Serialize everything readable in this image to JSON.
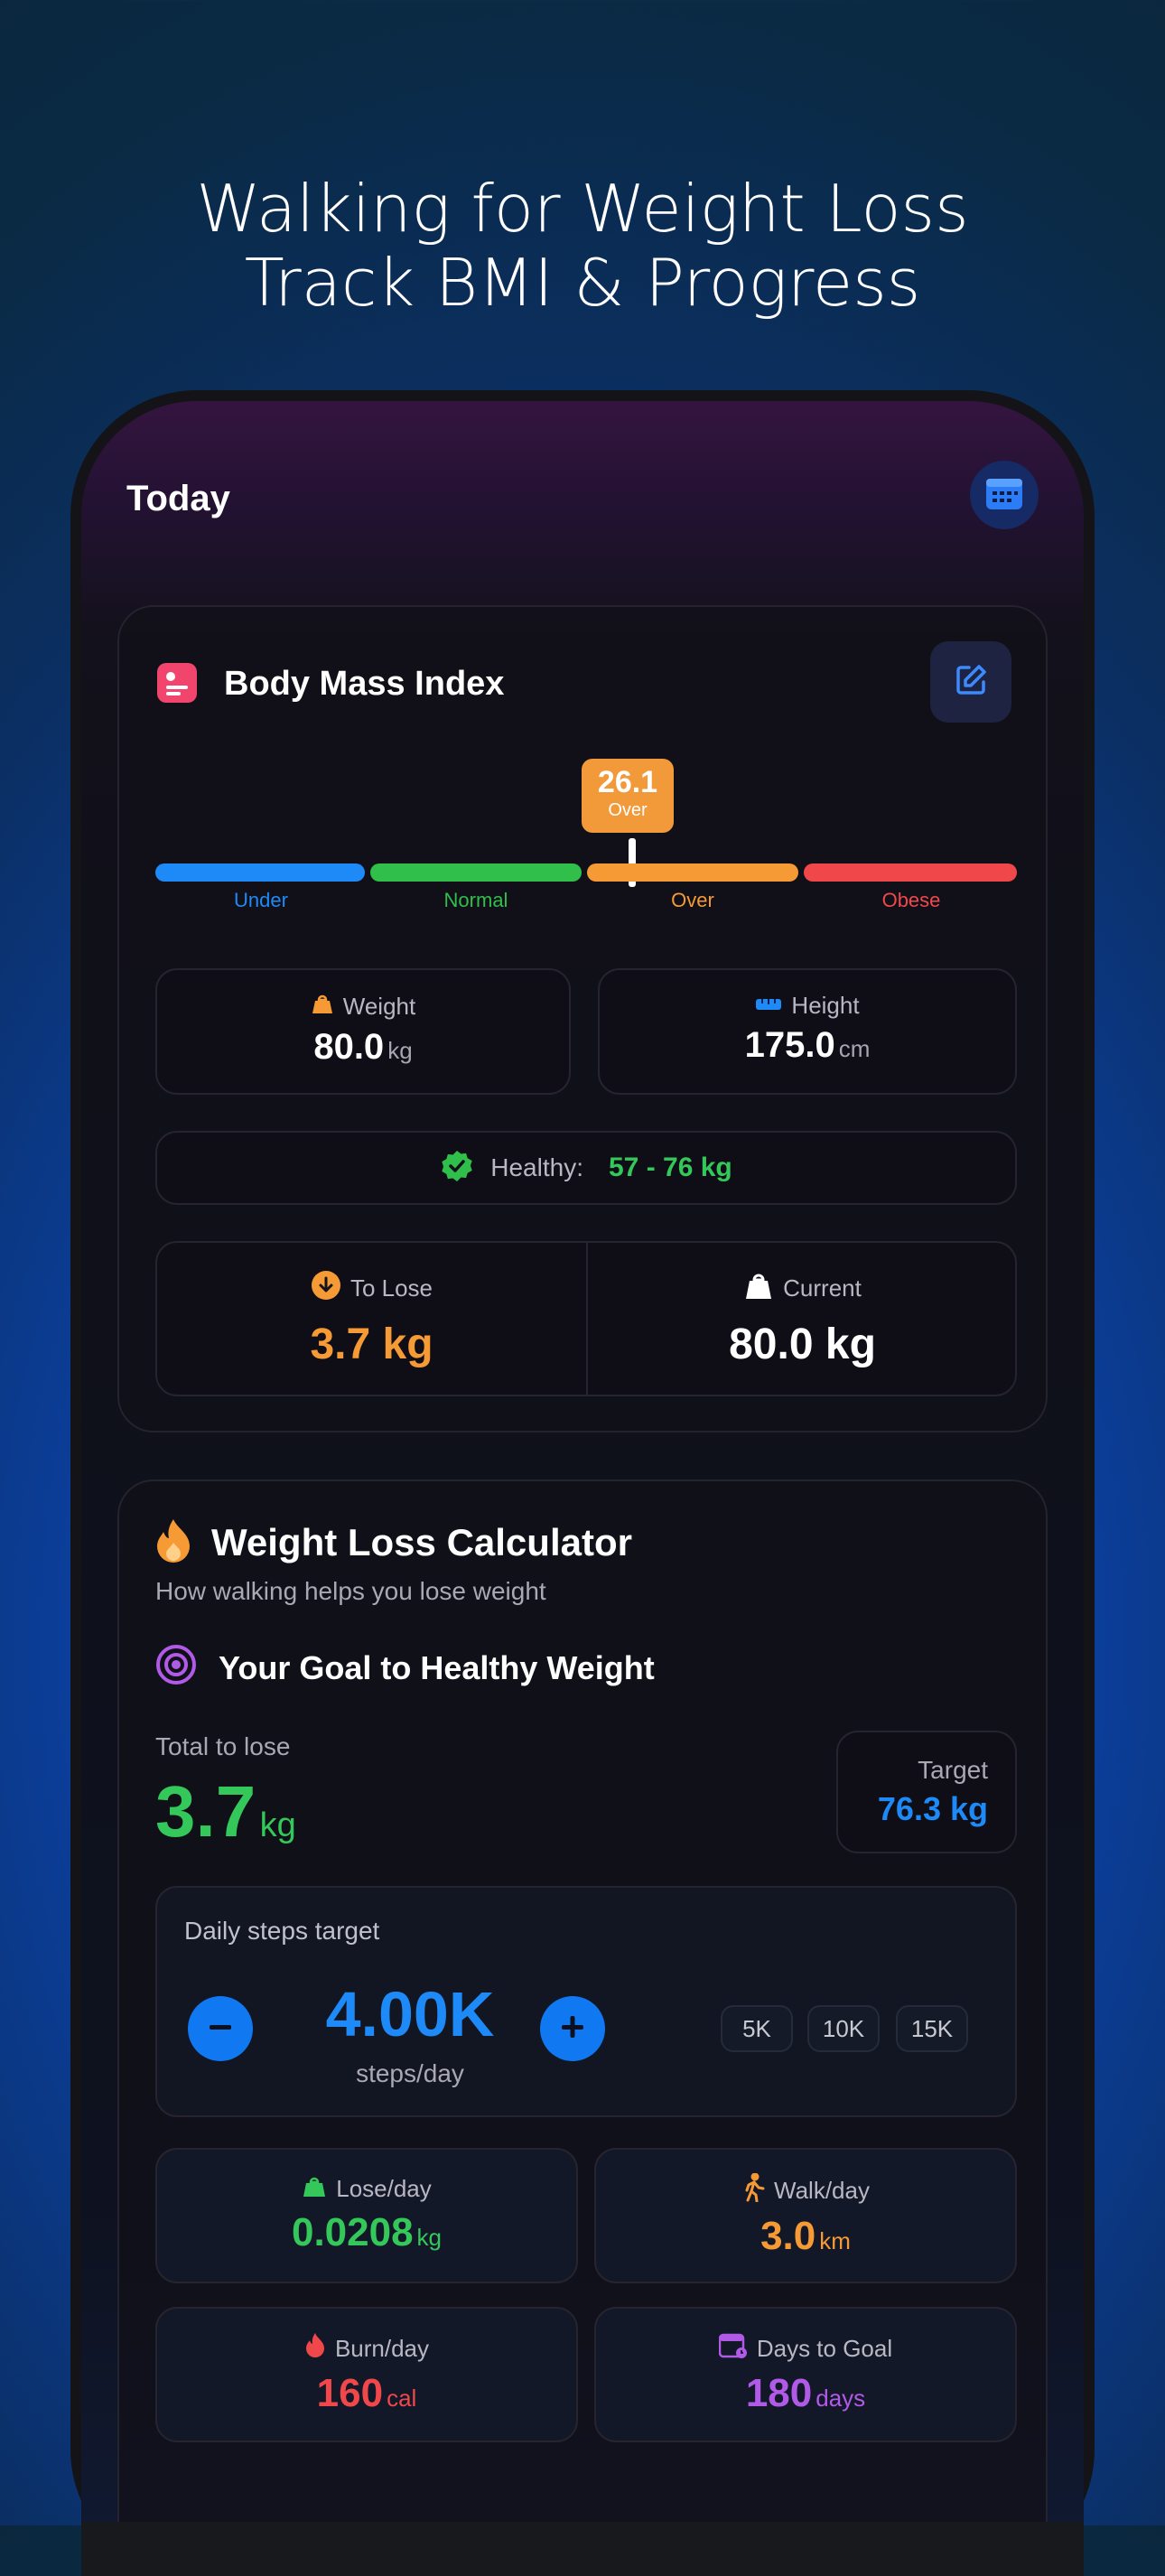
{
  "headline": {
    "line1": "Walking for Weight Loss",
    "line2": "Track BMI & Progress"
  },
  "header": {
    "title": "Today"
  },
  "bmi": {
    "title": "Body Mass Index",
    "value": "26.1",
    "value_label": "Over",
    "value_numeric": 26.1,
    "scale": [
      {
        "label": "Under",
        "color": "#1e8af7"
      },
      {
        "label": "Normal",
        "color": "#2fbf4a"
      },
      {
        "label": "Over",
        "color": "#f59a35"
      },
      {
        "label": "Obese",
        "color": "#f0484a"
      }
    ],
    "weight": {
      "label": "Weight",
      "value": "80.0",
      "unit": "kg"
    },
    "height": {
      "label": "Height",
      "value": "175.0",
      "unit": "cm"
    },
    "healthy": {
      "label": "Healthy:",
      "range": "57 - 76 kg"
    },
    "to_lose": {
      "label": "To Lose",
      "value": "3.7 kg"
    },
    "current": {
      "label": "Current",
      "value": "80.0 kg"
    }
  },
  "calculator": {
    "title": "Weight Loss Calculator",
    "subtitle": "How walking helps you lose weight",
    "goal_title": "Your Goal to Healthy Weight",
    "total_label": "Total to lose",
    "total_value": "3.7",
    "total_unit": "kg",
    "target_label": "Target",
    "target_value": "76.3 kg",
    "steps": {
      "label": "Daily steps target",
      "value": "4.00K",
      "unit": "steps/day",
      "presets": [
        "5K",
        "10K",
        "15K"
      ]
    },
    "stats": [
      {
        "label": "Lose/day",
        "value": "0.0208",
        "unit": "kg",
        "color": "#34c759"
      },
      {
        "label": "Walk/day",
        "value": "3.0",
        "unit": "km",
        "color": "#f59a35"
      },
      {
        "label": "Burn/day",
        "value": "160",
        "unit": "cal",
        "color": "#f0484a"
      },
      {
        "label": "Days to Goal",
        "value": "180",
        "unit": "days",
        "color": "#b15ae8"
      }
    ]
  },
  "colors": {
    "accent_blue": "#1078f0",
    "green": "#34c759",
    "orange": "#f59a35",
    "red": "#f0484a",
    "purple": "#b15ae8",
    "pink": "#f2456e"
  }
}
